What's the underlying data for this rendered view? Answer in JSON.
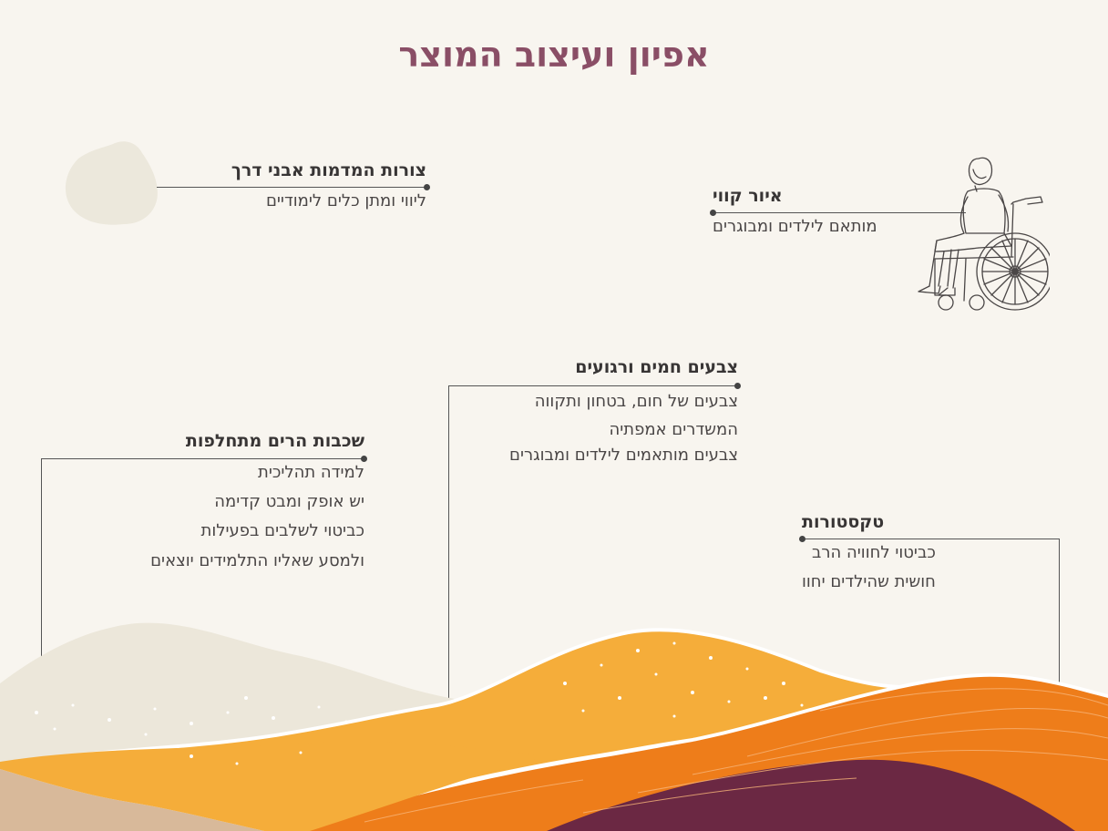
{
  "title": "אפיון ועיצוב המוצר",
  "blocks": {
    "stones": {
      "heading": "צורות המדמות אבני דרך",
      "lines": [
        "ליווי ומתן כלים לימודיים"
      ]
    },
    "line_art": {
      "heading": "איור קווי",
      "lines": [
        "מותאם לילדים ומבוגרים"
      ]
    },
    "colors": {
      "heading": "צבעים חמים ורגועים",
      "lines": [
        "צבעים של חום, בטחון ותקווה",
        "המשדרים אמפתיה",
        "צבעים מותאמים לילדים ומבוגרים"
      ]
    },
    "mountains": {
      "heading": "שכבות הרים מתחלפות",
      "lines": [
        "למידה תהליכית",
        "יש אופק ומבט קדימה",
        "כביטוי לשלבים בפעילות",
        "ולמסע שאליו התלמידים יוצאים"
      ]
    },
    "textures": {
      "heading": "טקסטורות",
      "lines": [
        "כביטוי לחוויה הרב",
        "חושית שהילדים יחוו"
      ]
    }
  },
  "colors": {
    "background": "#f8f5ef",
    "title": "#8a4e66",
    "stone": "#ece8dc",
    "hill_beige": "#ece7da",
    "hill_yellow": "#f5ad3a",
    "hill_orange": "#ee7d1a",
    "hill_plum": "#6b2843",
    "hill_sand": "#d8b99a"
  },
  "icons": {
    "stone": "stone-shape",
    "illustration": "wheelchair-woman-line-art"
  }
}
